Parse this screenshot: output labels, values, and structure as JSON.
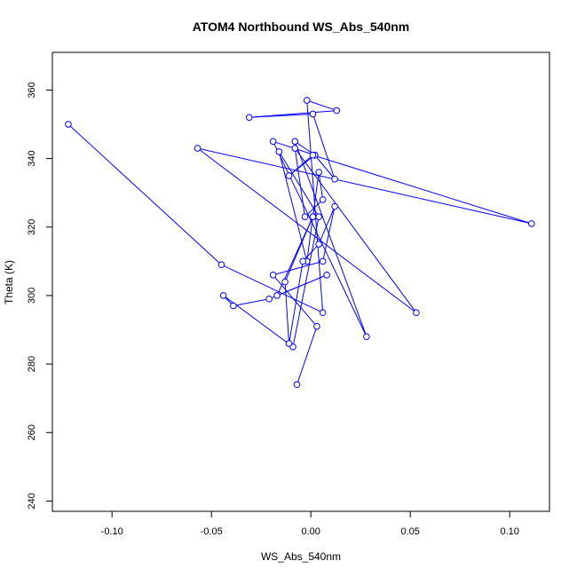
{
  "chart_data": {
    "type": "line",
    "title": "ATOM4 Northbound WS_Abs_540nm",
    "xlabel": "WS_Abs_540nm",
    "ylabel": "Theta (K)",
    "xlim": [
      -0.13,
      0.12
    ],
    "ylim": [
      237,
      371
    ],
    "xticks": [
      -0.1,
      -0.05,
      0.0,
      0.05,
      0.1
    ],
    "xtick_labels": [
      "-0.10",
      "-0.05",
      "0.00",
      "0.05",
      "0.10"
    ],
    "yticks": [
      240,
      260,
      280,
      300,
      320,
      340,
      360
    ],
    "ytick_labels": [
      "240",
      "260",
      "280",
      "300",
      "320",
      "340",
      "360"
    ],
    "grid": false,
    "markers": "open-circle",
    "colors": {
      "series": "#0000ff",
      "axis": "#000000"
    },
    "series": [
      {
        "name": "",
        "x": [
          -0.122,
          -0.045,
          0.006,
          -0.002,
          0.013,
          -0.031,
          0.001,
          0.012,
          0.002,
          -0.008,
          0.028,
          -0.019,
          0.002,
          -0.011,
          0.001,
          0.111,
          -0.057,
          0.053,
          -0.008,
          -0.003,
          0.006,
          0.004,
          -0.002,
          -0.016,
          0.004,
          -0.009,
          -0.044,
          -0.039,
          -0.021,
          0.008,
          -0.017,
          0.001,
          0.001,
          -0.013,
          -0.011,
          -0.004,
          0.004,
          0.012,
          0.006,
          -0.019,
          0.003,
          -0.007
        ],
        "y": [
          350,
          309,
          295,
          357,
          354,
          352,
          353,
          334,
          341,
          345,
          288,
          345,
          341,
          335,
          341,
          321,
          343,
          295,
          343,
          323,
          328,
          336,
          310,
          342,
          323,
          285,
          300,
          297,
          299,
          306,
          300,
          323,
          323,
          304,
          286,
          310,
          315,
          326,
          310,
          306,
          291,
          274
        ]
      }
    ]
  }
}
